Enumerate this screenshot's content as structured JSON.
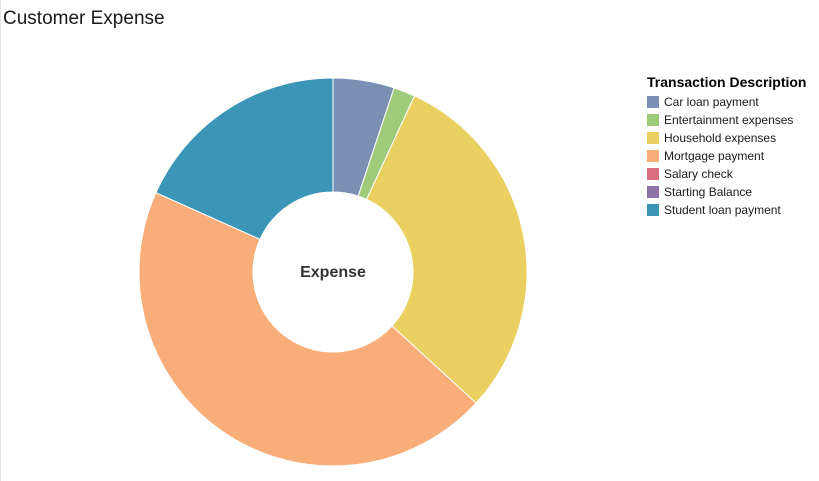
{
  "page": {
    "title": "Customer Expense"
  },
  "chart_data": {
    "type": "pie",
    "variant": "donut",
    "title": "Customer Expense",
    "center_label": "Expense",
    "legend_title": "Transaction Description",
    "legend_position": "right",
    "categories": [
      "Car loan payment",
      "Entertainment expenses",
      "Household expenses",
      "Mortgage payment",
      "Salary check",
      "Starting Balance",
      "Student loan payment"
    ],
    "values": [
      5.1,
      1.8,
      29.9,
      44.9,
      0,
      0,
      18.3
    ],
    "colors": [
      "#7990b4",
      "#9fcc7a",
      "#eacf61",
      "#f9ae7a",
      "#db6f7f",
      "#8c72a7",
      "#3b95b7"
    ],
    "unit": "percent of total (estimated)"
  }
}
